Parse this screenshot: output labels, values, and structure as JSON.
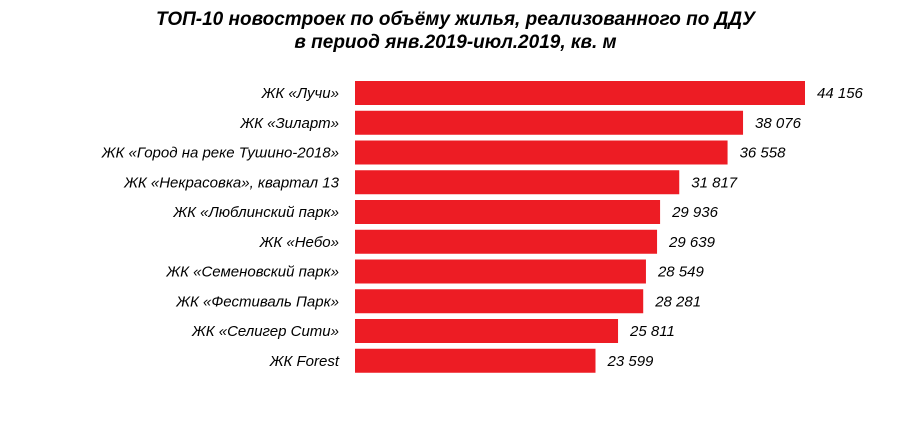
{
  "chart_data": {
    "type": "bar",
    "orientation": "horizontal",
    "title": "ТОП-10 новостроек по объёму жилья, реализованного по ДДУ",
    "subtitle": "в период янв.2019-июл.2019, кв. м",
    "xlabel": "",
    "ylabel": "",
    "grid": false,
    "legend": "none",
    "bar_color": "#ed1c24",
    "xlim": [
      0,
      44156
    ],
    "categories": [
      "ЖК «Лучи»",
      "ЖК «Зиларт»",
      "ЖК «Город на реке Тушино-2018»",
      "ЖК «Некрасовка», квартал 13",
      "ЖК «Люблинский парк»",
      "ЖК «Небо»",
      "ЖК «Семеновский парк»",
      "ЖК «Фестиваль Парк»",
      "ЖК «Селигер Сити»",
      "ЖК Forest"
    ],
    "values": [
      44156,
      38076,
      36558,
      31817,
      29936,
      29639,
      28549,
      28281,
      25811,
      23599
    ],
    "value_labels": [
      "44 156",
      "38 076",
      "36 558",
      "31 817",
      "29 936",
      "29 639",
      "28 549",
      "28 281",
      "25 811",
      "23 599"
    ]
  }
}
